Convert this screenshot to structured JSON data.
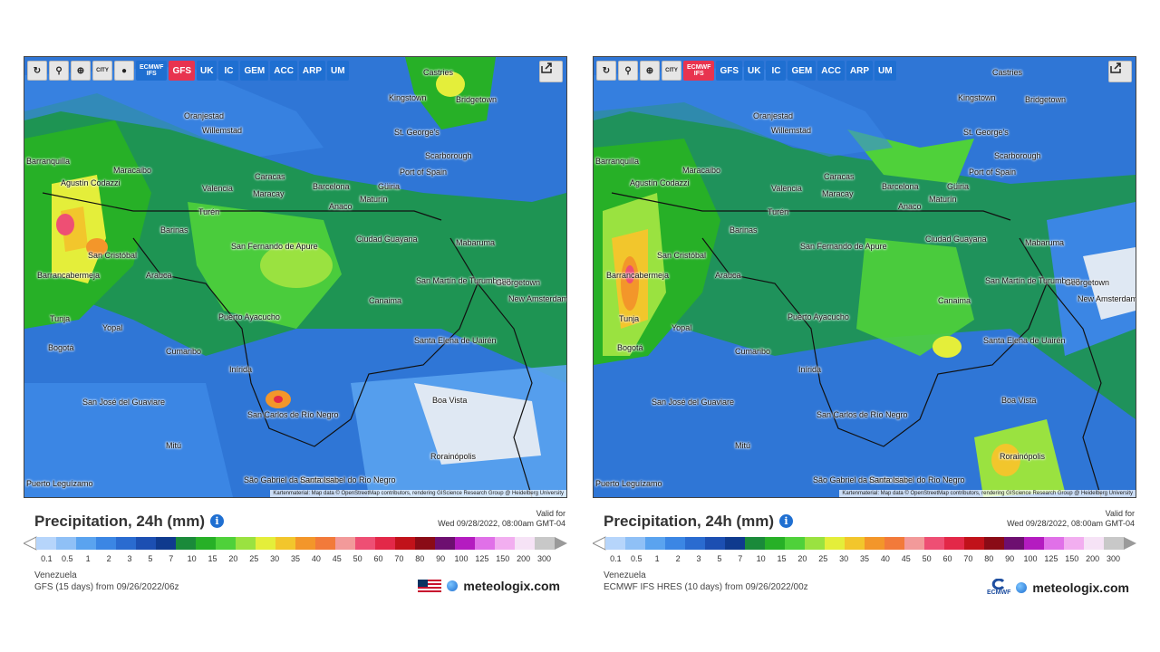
{
  "toolbar": {
    "tools": [
      {
        "icon": "refresh-icon",
        "glyph": "↻"
      },
      {
        "icon": "location-pin-icon",
        "glyph": "⚲"
      },
      {
        "icon": "zoom-icon",
        "glyph": "⊕"
      },
      {
        "icon": "city-toggle-icon",
        "glyph": "CITY"
      },
      {
        "icon": "dark-mode-icon",
        "glyph": "●"
      }
    ],
    "share_icon": "share-icon"
  },
  "legend": {
    "ticks": [
      "0.1",
      "0.5",
      "1",
      "2",
      "3",
      "5",
      "7",
      "10",
      "15",
      "20",
      "25",
      "30",
      "35",
      "40",
      "45",
      "50",
      "60",
      "70",
      "80",
      "90",
      "100",
      "125",
      "150",
      "200",
      "300"
    ],
    "colors": [
      "#b6d5fb",
      "#8fc0f6",
      "#5aa3ef",
      "#3b86e4",
      "#2a6bd0",
      "#1c4fb2",
      "#0f3a8e",
      "#1a8a3a",
      "#27b027",
      "#4fd13a",
      "#9ae240",
      "#e4ee3a",
      "#f2c62c",
      "#f3962a",
      "#f27a3a",
      "#f29a9a",
      "#ee4f74",
      "#e32848",
      "#c1121a",
      "#8a0b16",
      "#6d0f70",
      "#b41bc0",
      "#e070e8",
      "#f2aef0",
      "#f6e3f6",
      "#c8c8c8"
    ]
  },
  "left": {
    "models": [
      "ECMWF IFS",
      "GFS",
      "UK",
      "IC",
      "GEM",
      "ACC",
      "ARP",
      "UM"
    ],
    "active_model": "GFS",
    "title": "Precipitation, 24h (mm)",
    "valid_label": "Valid for",
    "valid_time": "Wed 09/28/2022, 08:00am GMT-04",
    "region": "Venezuela",
    "run": "GFS (15 days) from 09/26/2022/06z",
    "brand": "meteologix.com",
    "flag": "us-flag-icon",
    "attribution": "Kartenmaterial: Map data © OpenStreetMap contributors, rendering GIScience Research Group @ Heidelberg University"
  },
  "right": {
    "models": [
      "ECMWF IFS",
      "GFS",
      "UK",
      "IC",
      "GEM",
      "ACC",
      "ARP",
      "UM"
    ],
    "active_model": "ECMWF IFS",
    "title": "Precipitation, 24h (mm)",
    "valid_label": "Valid for",
    "valid_time": "Wed 09/28/2022, 08:00am GMT-04",
    "region": "Venezuela",
    "run": "ECMWF IFS HRES (10 days) from 09/26/2022/00z",
    "brand": "meteologix.com",
    "logo_text": "ECMWF",
    "attribution": "Kartenmaterial: Map data © OpenStreetMap contributors, rendering GIScience Research Group @ Heidelberg University"
  },
  "cities": [
    "Castries",
    "Kingstown",
    "Bridgetown",
    "Oranjestad",
    "Willemstad",
    "St. George's",
    "Scarborough",
    "Barranquilla",
    "Maracaibo",
    "Port of Spain",
    "Caracas",
    "Agustín Codazzi",
    "Valencia",
    "Maracay",
    "Barcelona",
    "Güiria",
    "Maturín",
    "Turén",
    "Anaco",
    "Barinas",
    "Ciudad Guayana",
    "Mabaruma",
    "San Fernando de Apure",
    "San Cristóbal",
    "Barrancabermeja",
    "Arauca",
    "San Martín de Turumbang",
    "Georgetown",
    "New Amsterdam",
    "Canaima",
    "Tunja",
    "Yopal",
    "Puerto Ayacucho",
    "Bogotá",
    "Cumaribo",
    "Santa Elena de Uairén",
    "Inírida",
    "Boa Vista",
    "San José del Guaviare",
    "San Carlos de Río Negro",
    "Mitú",
    "Rorainópolis",
    "São Gabriel da Cachoeira",
    "Santa Isabel do Rio Negro",
    "Puerto Leguízamo"
  ]
}
